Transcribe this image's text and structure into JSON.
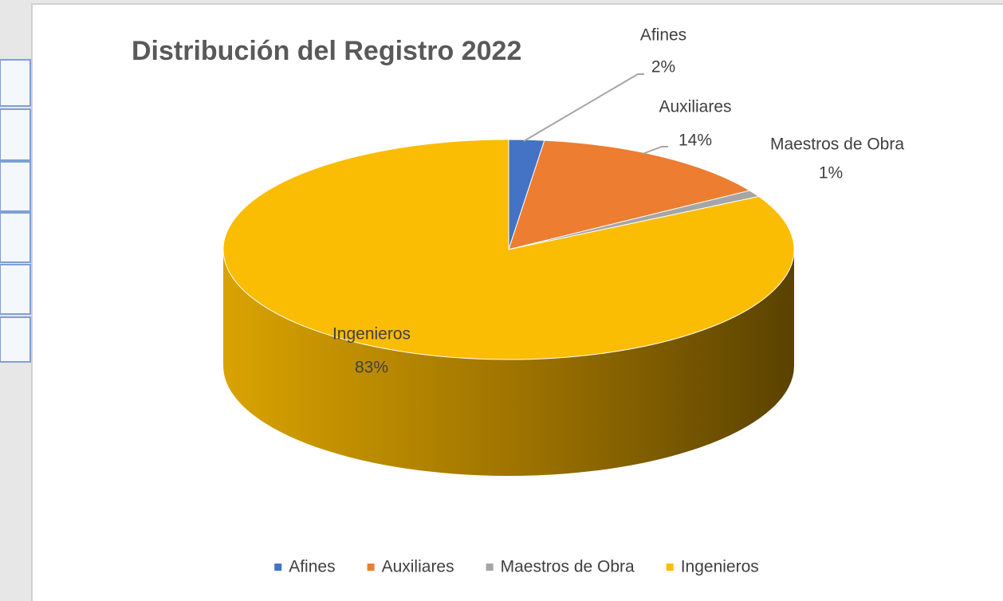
{
  "chart_data": {
    "type": "pie3d",
    "title": "Distribución del Registro 2022",
    "categories": [
      "Afines",
      "Auxiliares",
      "Maestros de Obra",
      "Ingenieros"
    ],
    "values": [
      2,
      14,
      1,
      83
    ],
    "value_labels": [
      "2%",
      "14%",
      "1%",
      "83%"
    ],
    "colors": [
      "#4472c4",
      "#ed7d31",
      "#a5a5a5",
      "#fbbc04"
    ],
    "legend": "bottom"
  }
}
